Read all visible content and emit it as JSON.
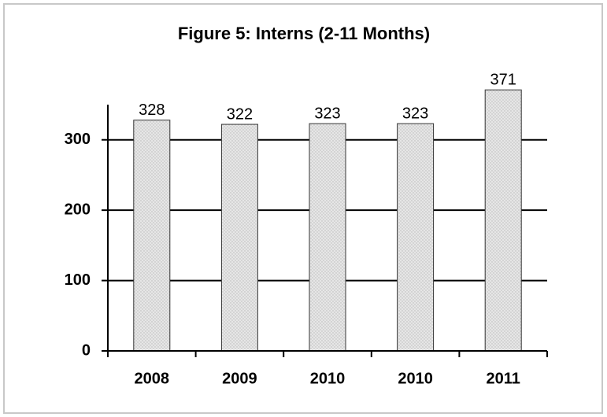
{
  "chart_data": {
    "type": "bar",
    "title": "Figure 5: Interns (2-11 Months)",
    "categories": [
      "2008",
      "2009",
      "2010",
      "2010",
      "2011"
    ],
    "values": [
      328,
      322,
      323,
      323,
      371
    ],
    "color": "#dcdcdc",
    "ylim": [
      0,
      350
    ],
    "yticks": [
      0,
      100,
      200,
      300
    ],
    "grid": true
  }
}
